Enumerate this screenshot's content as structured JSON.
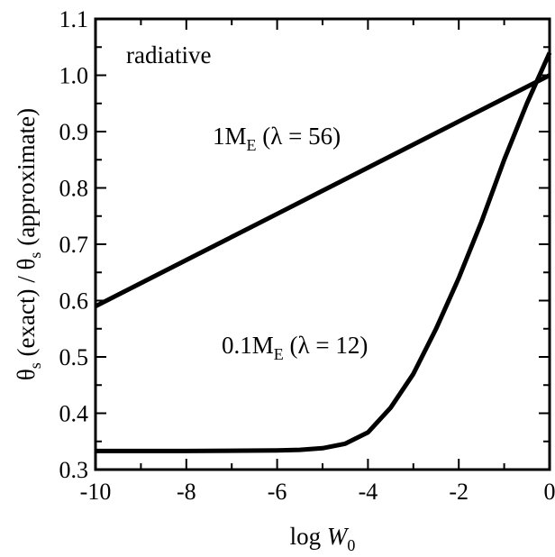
{
  "chart_data": {
    "type": "line",
    "xlabel": {
      "main": "log ",
      "var": "W",
      "sub": "0"
    },
    "ylabel": {
      "theta": "θ",
      "sub": "s",
      "exact": " (exact) / ",
      "approx": " (approximate)"
    },
    "xlim": [
      -10,
      0
    ],
    "ylim": [
      0.3,
      1.1
    ],
    "xticks": [
      -10,
      -8,
      -6,
      -4,
      -2,
      0
    ],
    "xtick_labels": [
      "-10",
      "-8",
      "-6",
      "-4",
      "-2",
      "0"
    ],
    "yticks": [
      0.3,
      0.4,
      0.5,
      0.6,
      0.7,
      0.8,
      0.9,
      1.0,
      1.1
    ],
    "ytick_labels": [
      "0.3",
      "0.4",
      "0.5",
      "0.6",
      "0.7",
      "0.8",
      "0.9",
      "1.0",
      "1.1"
    ],
    "grid": false,
    "annotations": [
      {
        "id": "regime",
        "text": "radiative"
      },
      {
        "id": "series-1",
        "pre": "1M",
        "sub": "E",
        "post": " (λ = 56)"
      },
      {
        "id": "series-2",
        "pre": "0.1M",
        "sub": "E",
        "post": " (λ = 12)"
      }
    ],
    "series": [
      {
        "x": [
          -10,
          -9,
          -8,
          -7,
          -6,
          -5,
          -4,
          -3,
          -2,
          -1,
          0
        ],
        "y": [
          0.59,
          0.631,
          0.672,
          0.713,
          0.754,
          0.795,
          0.836,
          0.877,
          0.918,
          0.959,
          1.0
        ]
      },
      {
        "x": [
          -10,
          -8,
          -6,
          -5.5,
          -5,
          -4.5,
          -4,
          -3.5,
          -3,
          -2.5,
          -2,
          -1.5,
          -1,
          -0.5,
          0
        ],
        "y": [
          0.333,
          0.333,
          0.334,
          0.335,
          0.338,
          0.346,
          0.366,
          0.41,
          0.47,
          0.55,
          0.64,
          0.74,
          0.85,
          0.95,
          1.04
        ]
      }
    ]
  }
}
